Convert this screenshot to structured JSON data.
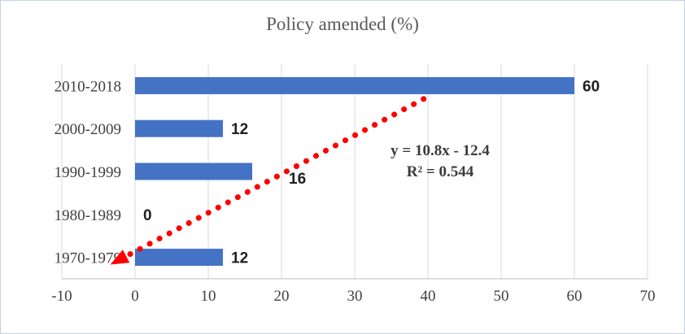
{
  "title": "Policy amended (%)",
  "chart_data": {
    "type": "bar",
    "orientation": "horizontal",
    "title": "Policy amended (%)",
    "categories": [
      "2010-2018",
      "2000-2009",
      "1990-1999",
      "1980-1989",
      "1970-1979"
    ],
    "values": [
      60,
      12,
      16,
      0,
      12
    ],
    "data_labels": [
      "60",
      "12",
      "16",
      "0",
      "12"
    ],
    "xlim": [
      -10,
      70
    ],
    "xticks": [
      -10,
      0,
      10,
      20,
      30,
      40,
      50,
      60,
      70
    ],
    "xlabel": "",
    "ylabel": "",
    "grid": "vertical",
    "bar_color": "#4472C4",
    "gridline_color": "#d9d9d9",
    "trendline": {
      "equation": "y = 10.8x - 12.4",
      "r_squared": "R² = 0.544",
      "color": "#ff0000",
      "style": "dotted",
      "arrow": "lower-left"
    }
  }
}
